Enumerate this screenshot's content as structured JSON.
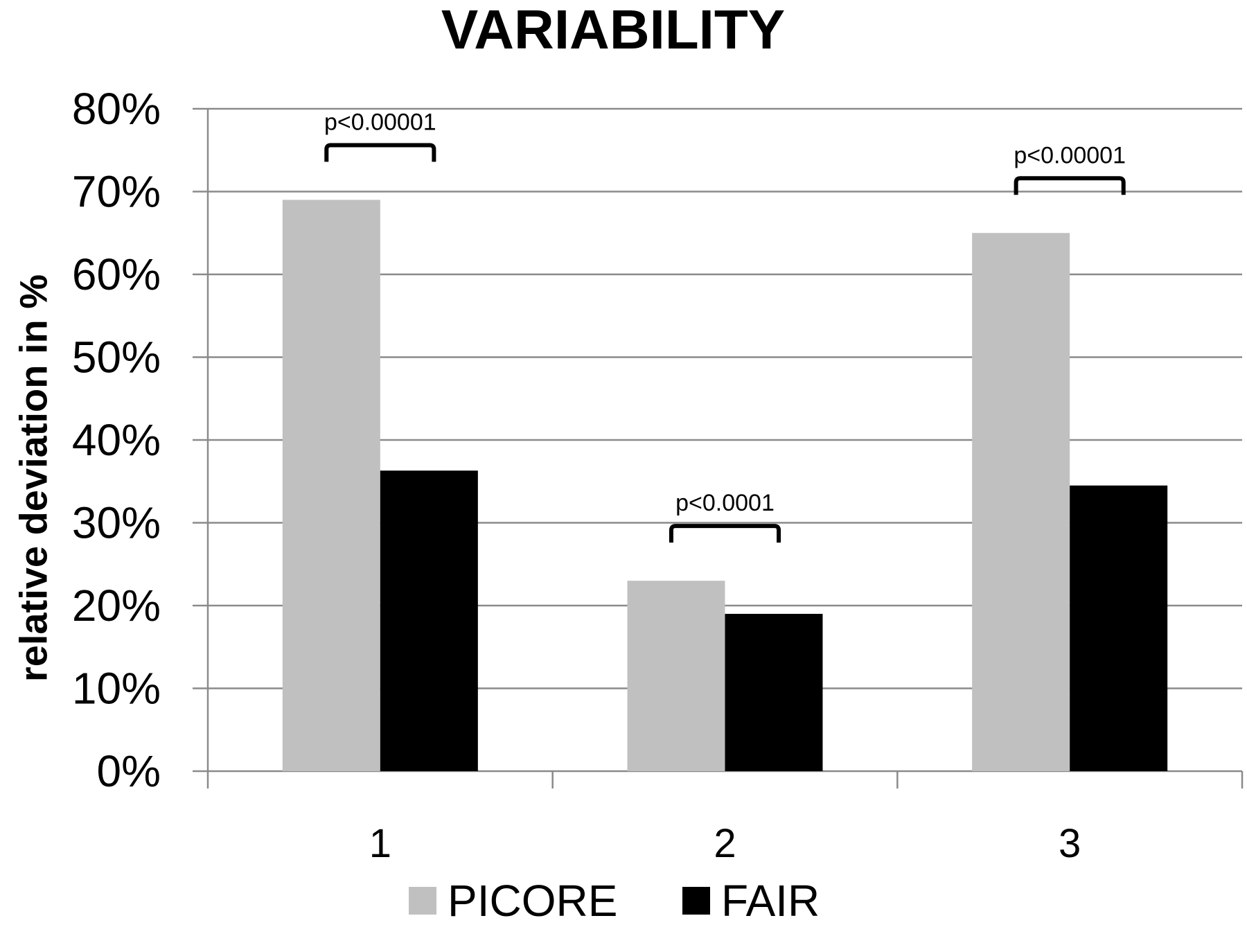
{
  "chart_data": {
    "type": "bar",
    "title": "VARIABILITY",
    "xlabel": "",
    "ylabel": "relative deviation in %",
    "categories": [
      "1",
      "2",
      "3"
    ],
    "series": [
      {
        "name": "PICORE",
        "values": [
          69,
          23,
          65
        ],
        "color": "#c0c0c0"
      },
      {
        "name": "FAIR",
        "values": [
          36.3,
          19,
          34.5
        ],
        "color": "#000000"
      }
    ],
    "ylim": [
      0,
      80
    ],
    "yticks": [
      0,
      10,
      20,
      30,
      40,
      50,
      60,
      70,
      80
    ],
    "ytick_labels": [
      "0%",
      "10%",
      "20%",
      "30%",
      "40%",
      "50%",
      "60%",
      "70%",
      "80%"
    ],
    "annotations": [
      {
        "category": "1",
        "text": "p<0.00001"
      },
      {
        "category": "2",
        "text": "p<0.0001"
      },
      {
        "category": "3",
        "text": "p<0.00001"
      }
    ],
    "grid": true,
    "legend_position": "bottom"
  }
}
